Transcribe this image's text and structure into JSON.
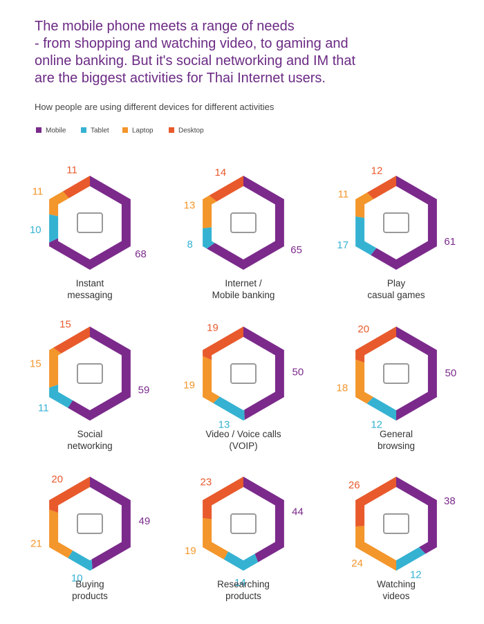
{
  "chart_data": {
    "type": "hex-donut",
    "title": "The mobile phone meets a range of needs\n- from shopping and watching video, to gaming and\nonline banking. But it's social networking and IM that\nare the biggest activities for Thai Internet users.",
    "subtitle": "How people are using different devices for different activities",
    "categories": [
      "Instant\nmessaging",
      "Internet /\nMobile banking",
      "Play\ncasual games",
      "Social\nnetworking",
      "Video / Voice calls\n(VOIP)",
      "General\nbrowsing",
      "Buying\nproducts",
      "Researching\nproducts",
      "Watching\nvideos"
    ],
    "series": [
      {
        "name": "Mobile",
        "color": "#7b2a8b",
        "values": [
          68,
          65,
          61,
          59,
          50,
          50,
          49,
          44,
          38
        ]
      },
      {
        "name": "Tablet",
        "color": "#35b2d2",
        "values": [
          10,
          8,
          17,
          11,
          13,
          12,
          10,
          14,
          12
        ]
      },
      {
        "name": "Laptop",
        "color": "#f3962b",
        "values": [
          11,
          13,
          11,
          15,
          19,
          18,
          21,
          19,
          24
        ]
      },
      {
        "name": "Desktop",
        "color": "#e85a2c",
        "values": [
          11,
          14,
          12,
          15,
          19,
          20,
          20,
          23,
          26
        ]
      }
    ]
  }
}
